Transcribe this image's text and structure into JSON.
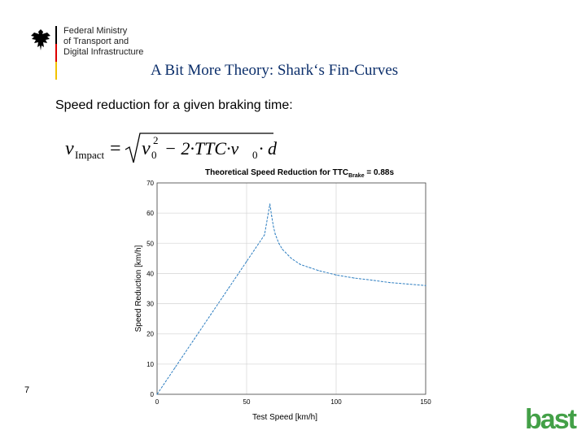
{
  "header": {
    "ministry_name": "Federal Ministry\nof Transport and\nDigital Infrastructure",
    "slide_title": "A Bit More Theory: Shark‘s Fin-Curves"
  },
  "content": {
    "subtitle": "Speed reduction for a given braking time:",
    "formula": {
      "lhs_var": "v",
      "lhs_sub": "Impact",
      "eq": "=",
      "v0_var": "v",
      "v0_sub": "0",
      "square": "2",
      "rest": "− 2·TTC·v",
      "v0b_sub": "0",
      "tail": "· d"
    }
  },
  "footer": {
    "page_number": "7",
    "logo_text": "bast"
  },
  "colors": {
    "title": "#0c2f6b",
    "curve": "#2f7fc1",
    "grid": "#d9d9d9",
    "logo": "#43a047"
  },
  "chart_data": {
    "type": "line",
    "title_main": "Theoretical Speed Reduction for TTC",
    "title_sub": "Brake",
    "title_tail": " = 0.88s",
    "xlabel": "Test Speed [km/h]",
    "ylabel": "Speed Reduction [km/h]",
    "xlim": [
      0,
      150
    ],
    "ylim": [
      0,
      70
    ],
    "xticks": [
      0,
      50,
      100,
      150
    ],
    "yticks": [
      0,
      10,
      20,
      30,
      40,
      50,
      60,
      70
    ],
    "grid": true,
    "series": [
      {
        "x": [
          0,
          10,
          20,
          30,
          40,
          50,
          60,
          63,
          64,
          65,
          66,
          68,
          70,
          75,
          80,
          85,
          90,
          100,
          110,
          120,
          130,
          140,
          150
        ],
        "values": [
          0,
          8.8,
          17.6,
          26.4,
          35.2,
          44,
          52.8,
          63,
          59,
          55.5,
          53,
          50,
          48,
          45,
          43,
          42,
          41,
          39.5,
          38.5,
          37.8,
          37,
          36.5,
          36
        ]
      }
    ]
  }
}
